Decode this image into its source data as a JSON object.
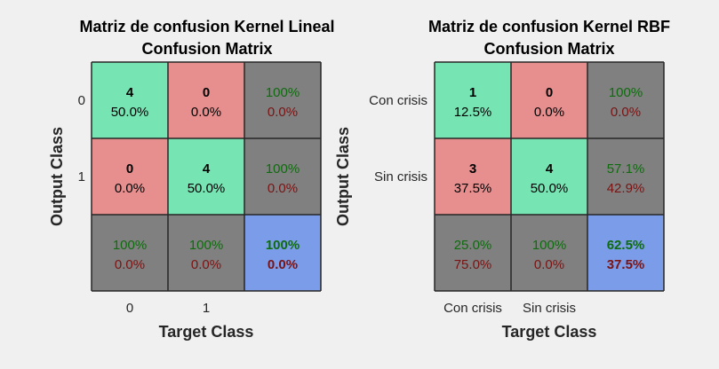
{
  "colors": {
    "background": "#f0f0f0",
    "correct": "#77e4b4",
    "incorrect": "#e78f8f",
    "summary": "#808080",
    "overall": "#7b9ce8",
    "pct_good": "#0e6b0e",
    "pct_bad": "#7a1313",
    "text": "#000000",
    "border": "#262626"
  },
  "chart_data": [
    {
      "type": "heatmap",
      "title": "Matriz de confusion Kernel Lineal",
      "subtitle": "Confusion Matrix",
      "xlabel": "Target Class",
      "ylabel": "Output Class",
      "x_ticks": [
        "0",
        "1"
      ],
      "y_ticks": [
        "0",
        "1"
      ],
      "counts": [
        [
          4,
          0
        ],
        [
          0,
          4
        ]
      ],
      "percents": [
        [
          "50.0%",
          "0.0%"
        ],
        [
          "0.0%",
          "50.0%"
        ]
      ],
      "row_summary": [
        [
          "100%",
          "0.0%"
        ],
        [
          "100%",
          "0.0%"
        ]
      ],
      "col_summary": [
        [
          "100%",
          "0.0%"
        ],
        [
          "100%",
          "0.0%"
        ]
      ],
      "overall": [
        "100%",
        "0.0%"
      ]
    },
    {
      "type": "heatmap",
      "title": "Matriz de confusion Kernel RBF",
      "subtitle": "Confusion Matrix",
      "xlabel": "Target Class",
      "ylabel": "Output Class",
      "x_ticks": [
        "Con crisis",
        "Sin crisis"
      ],
      "y_ticks": [
        "Con crisis",
        "Sin crisis"
      ],
      "counts": [
        [
          1,
          0
        ],
        [
          3,
          4
        ]
      ],
      "percents": [
        [
          "12.5%",
          "0.0%"
        ],
        [
          "37.5%",
          "50.0%"
        ]
      ],
      "row_summary": [
        [
          "100%",
          "0.0%"
        ],
        [
          "57.1%",
          "42.9%"
        ]
      ],
      "col_summary": [
        [
          "25.0%",
          "75.0%"
        ],
        [
          "100%",
          "0.0%"
        ]
      ],
      "overall": [
        "62.5%",
        "37.5%"
      ]
    }
  ]
}
